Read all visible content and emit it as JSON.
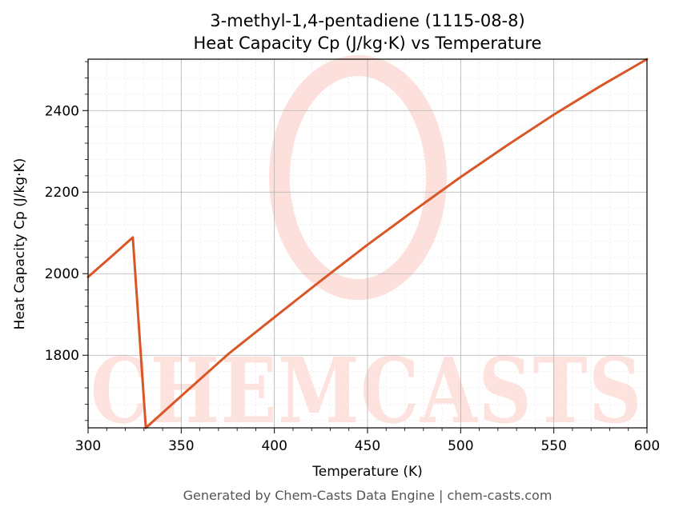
{
  "chart_data": {
    "type": "line",
    "title": "3-methyl-1,4-pentadiene (1115-08-8)",
    "subtitle": "Heat Capacity Cp (J/kg·K) vs Temperature",
    "xlabel": "Temperature (K)",
    "ylabel": "Heat Capacity Cp (J/kg·K)",
    "xlim": [
      300,
      600
    ],
    "ylim": [
      1622,
      2526
    ],
    "x_ticks": [
      300,
      350,
      400,
      450,
      500,
      550,
      600
    ],
    "y_ticks": [
      1800,
      2000,
      2200,
      2400
    ],
    "grid": true,
    "series": [
      {
        "color": "#d95626",
        "points": [
          [
            300,
            1992
          ],
          [
            312,
            2040
          ],
          [
            324,
            2089
          ],
          [
            331,
            1622
          ],
          [
            350,
            1700
          ],
          [
            375,
            1802
          ],
          [
            400,
            1893
          ],
          [
            425,
            1983
          ],
          [
            450,
            2071
          ],
          [
            475,
            2155
          ],
          [
            500,
            2237
          ],
          [
            525,
            2315
          ],
          [
            550,
            2390
          ],
          [
            575,
            2460
          ],
          [
            600,
            2526
          ]
        ]
      }
    ]
  },
  "watermark": {
    "text": "CHEMCASTS",
    "color": "#fcc7bd"
  },
  "footer": "Generated by Chem-Casts Data Engine | chem-casts.com"
}
